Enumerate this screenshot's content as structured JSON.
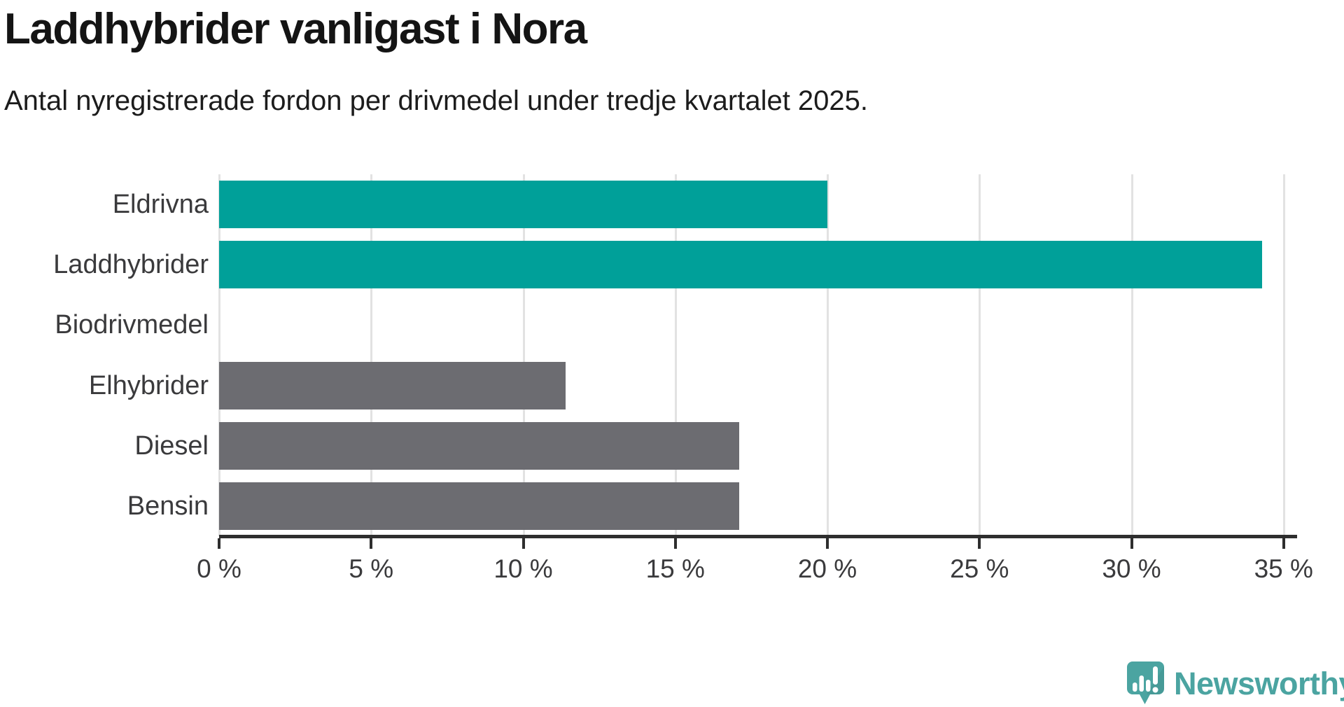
{
  "header": {
    "title": "Laddhybrider vanligast i Nora",
    "subtitle": "Antal nyregistrerade fordon per drivmedel under tredje kvartalet 2025."
  },
  "chart_data": {
    "type": "bar",
    "orientation": "horizontal",
    "title": "Laddhybrider vanligast i Nora",
    "subtitle": "Antal nyregistrerade fordon per drivmedel under tredje kvartalet 2025.",
    "categories": [
      "Eldrivna",
      "Laddhybrider",
      "Biodrivmedel",
      "Elhybrider",
      "Diesel",
      "Bensin"
    ],
    "values": [
      20.0,
      34.3,
      0,
      11.4,
      17.1,
      17.1
    ],
    "unit": "%",
    "bar_colors": [
      "#00a099",
      "#00a099",
      "#6c6c71",
      "#6c6c71",
      "#6c6c71",
      "#6c6c71"
    ],
    "highlight_color": "#00a099",
    "default_color": "#6c6c71",
    "xlabel": "",
    "ylabel": "",
    "xlim": [
      0,
      35.35
    ],
    "x_ticks": [
      0,
      5,
      10,
      15,
      20,
      25,
      30,
      35
    ],
    "x_tick_labels": [
      "0 %",
      "5 %",
      "10 %",
      "15 %",
      "20 %",
      "25 %",
      "30 %",
      "35 %"
    ],
    "grid": "vertical-light-gray",
    "legend": "none"
  },
  "footer": {
    "brand": "Newsworthy",
    "brand_color": "#4ba4a1",
    "logo_icon": "speech-bubble-bar-chart-exclamation"
  },
  "style_colors": {
    "gridline": "#e2e2e2",
    "axis": "#2e2e2e",
    "label": "#3a3a3c",
    "title": "#141414",
    "background": "#ffffff"
  }
}
